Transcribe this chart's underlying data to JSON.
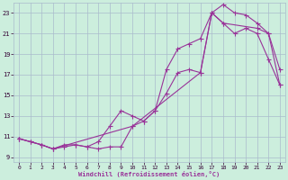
{
  "xlabel": "Windchill (Refroidissement éolien,°C)",
  "bg_color": "#cceedd",
  "grid_color": "#aabbcc",
  "line_color": "#993399",
  "xlim": [
    -0.5,
    23.5
  ],
  "ylim": [
    8.5,
    24.0
  ],
  "xticks": [
    0,
    1,
    2,
    3,
    4,
    5,
    6,
    7,
    8,
    9,
    10,
    11,
    12,
    13,
    14,
    15,
    16,
    17,
    18,
    19,
    20,
    21,
    22,
    23
  ],
  "yticks": [
    9,
    11,
    13,
    15,
    17,
    19,
    21,
    23
  ],
  "line1_x": [
    0,
    1,
    2,
    3,
    4,
    5,
    6,
    7,
    8,
    9,
    10,
    11,
    12,
    13,
    14,
    15,
    16,
    17,
    18,
    19,
    20,
    21,
    22,
    23
  ],
  "line1_y": [
    10.8,
    10.5,
    10.2,
    9.8,
    10.2,
    10.2,
    10.0,
    10.5,
    12.0,
    13.5,
    13.0,
    12.5,
    13.5,
    17.5,
    19.5,
    20.0,
    20.5,
    23.0,
    23.8,
    23.0,
    22.8,
    22.0,
    21.0,
    17.5
  ],
  "line2_x": [
    0,
    1,
    2,
    3,
    4,
    5,
    6,
    7,
    8,
    9,
    10,
    11,
    12,
    13,
    14,
    15,
    16,
    17,
    18,
    19,
    20,
    21,
    22,
    23
  ],
  "line2_y": [
    10.8,
    10.5,
    10.2,
    9.8,
    10.0,
    10.2,
    10.0,
    9.8,
    10.0,
    10.0,
    12.0,
    12.5,
    13.5,
    15.2,
    17.2,
    17.5,
    17.2,
    23.0,
    22.0,
    21.0,
    21.5,
    21.0,
    18.5,
    16.0
  ],
  "line3_x": [
    0,
    2,
    3,
    10,
    16,
    17,
    18,
    21,
    22,
    23
  ],
  "line3_y": [
    10.8,
    10.2,
    9.8,
    12.0,
    17.2,
    23.0,
    22.0,
    21.5,
    21.0,
    16.0
  ]
}
